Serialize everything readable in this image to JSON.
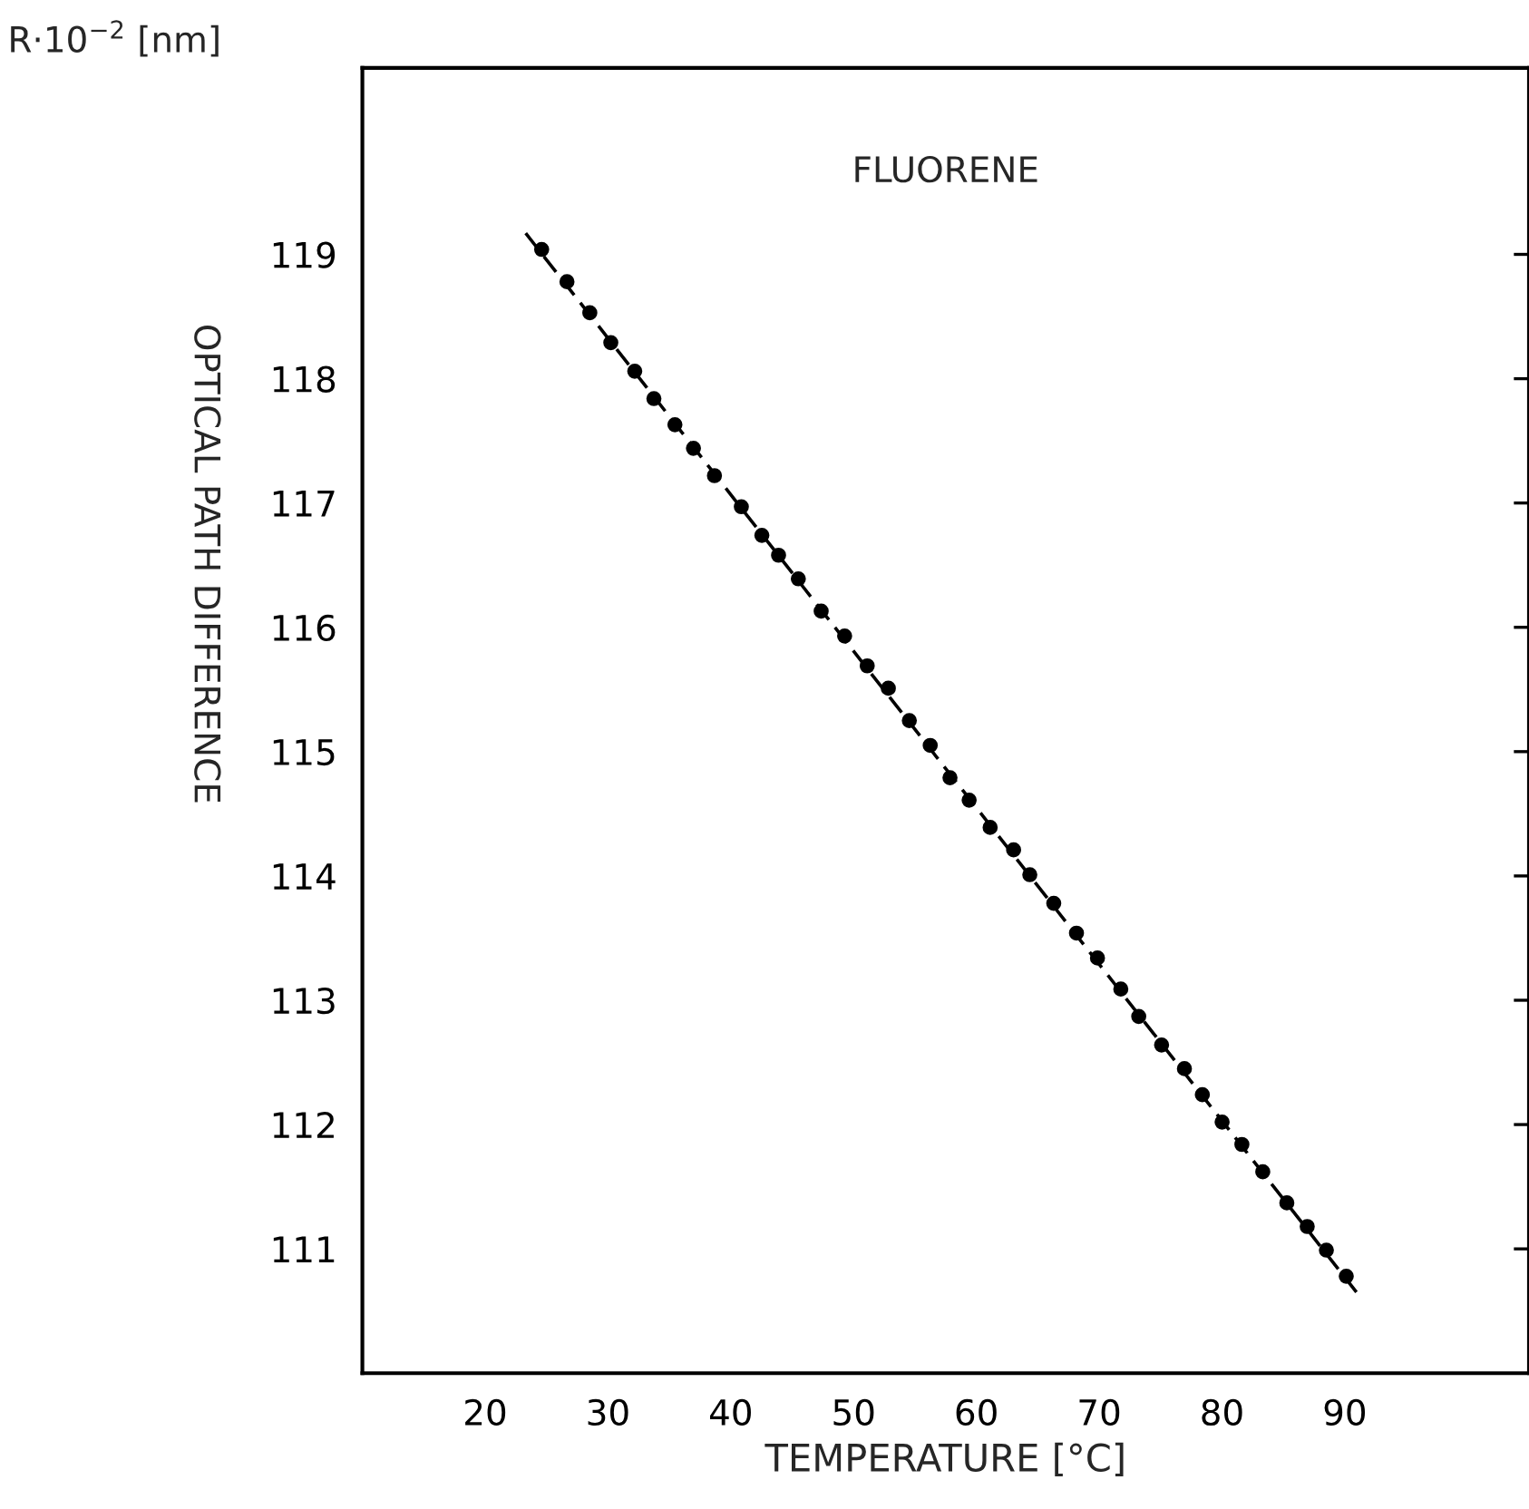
{
  "chart_data": {
    "type": "scatter",
    "title": "FLUORENE",
    "xlabel": "TEMPERATURE [°C]",
    "ylabel": "OPTICAL PATH DIFFERENCE",
    "annotations": [
      "R·10$^{−2}$ [nm]"
    ],
    "xlim": [
      10,
      105
    ],
    "xticks": [
      20,
      30,
      40,
      50,
      60,
      70,
      80,
      90
    ],
    "ylim": [
      110,
      120.5
    ],
    "yticks": [
      111,
      112,
      113,
      114,
      115,
      116,
      117,
      118,
      119
    ],
    "grid": false,
    "series": [
      {
        "color": "#000000",
        "marker": "circle",
        "x": [
          24.6,
          26.66,
          28.52,
          30.23,
          32.18,
          33.74,
          35.45,
          36.96,
          38.67,
          40.86,
          42.53,
          43.89,
          45.5,
          47.36,
          49.27,
          51.11,
          52.83,
          54.54,
          56.24,
          57.85,
          59.41,
          61.12,
          63.03,
          64.35,
          66.3,
          68.15,
          69.86,
          71.76,
          73.22,
          75.08,
          76.94,
          78.4,
          80.01,
          81.62,
          83.32,
          85.28,
          86.94,
          88.5,
          90.12
        ],
        "values": [
          119.04,
          118.78,
          118.53,
          118.29,
          118.06,
          117.84,
          117.63,
          117.44,
          117.22,
          116.97,
          116.74,
          116.58,
          116.39,
          116.13,
          115.93,
          115.69,
          115.51,
          115.25,
          115.05,
          114.79,
          114.61,
          114.39,
          114.21,
          114.01,
          113.78,
          113.54,
          113.34,
          113.09,
          112.87,
          112.64,
          112.45,
          112.24,
          112.02,
          111.84,
          111.62,
          111.37,
          111.18,
          110.99,
          110.78
        ]
      },
      {
        "type": "line",
        "color": "#000000",
        "line_style": "dashed",
        "x": [
          23.3,
          91.2
        ],
        "values": [
          119.17,
          110.62
        ]
      }
    ]
  }
}
